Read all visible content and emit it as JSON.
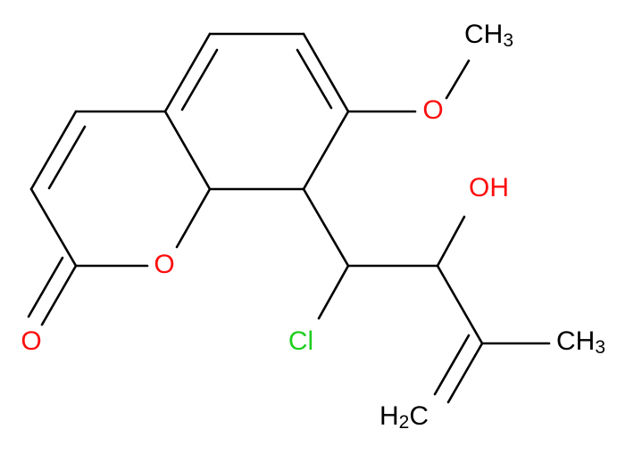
{
  "atoms": [
    {
      "text": "CH",
      "sub": "3"
    },
    {
      "text": "O"
    },
    {
      "text": "OH"
    },
    {
      "text": "O"
    },
    {
      "text": "O"
    },
    {
      "text": "Cl"
    },
    {
      "text": "CH",
      "sub": "3"
    },
    {
      "text": "H",
      "sub": "2",
      "tail": "C"
    }
  ]
}
